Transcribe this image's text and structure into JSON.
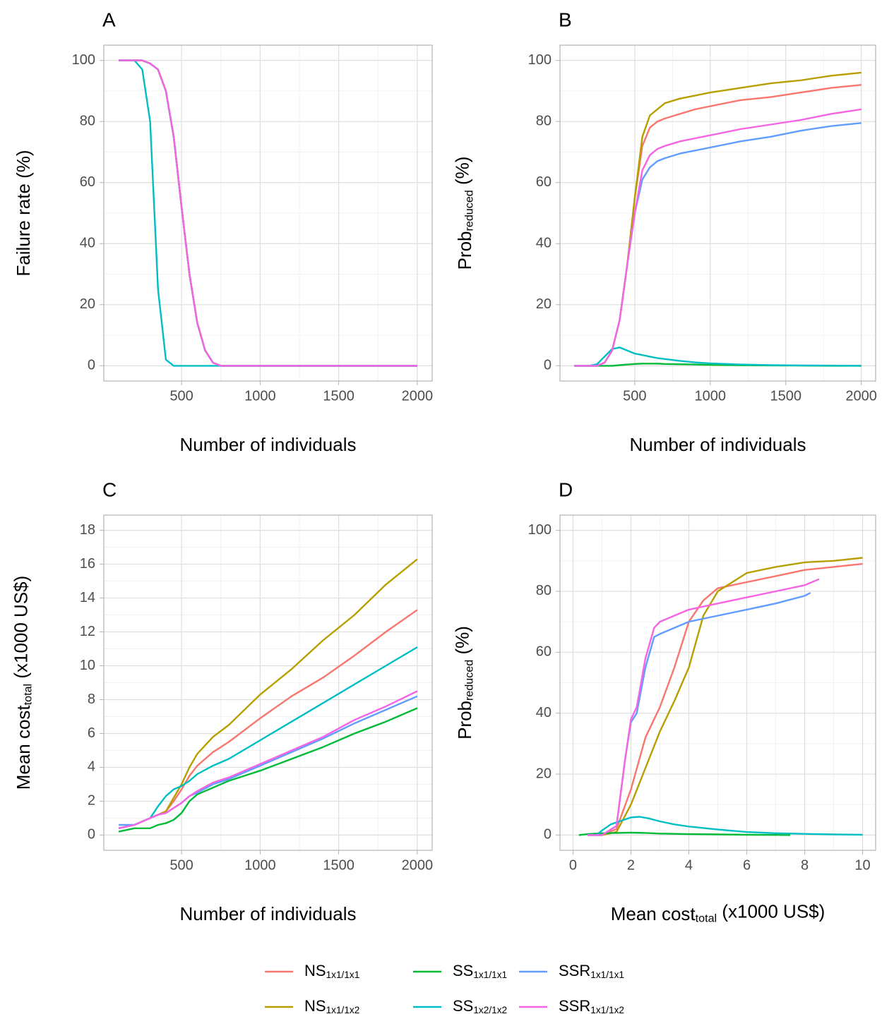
{
  "chart_data": [
    {
      "type": "line",
      "panel": "A",
      "y_label": "Failure rate (%)",
      "x_label": "Number of individuals",
      "x": [
        100,
        200,
        250,
        300,
        350,
        400,
        450,
        500,
        550,
        600,
        650,
        700,
        750,
        800,
        1000,
        1500,
        2000
      ],
      "xlim": [
        5,
        2095
      ],
      "xticks": [
        500,
        1000,
        1500,
        2000
      ],
      "ylim": [
        -5,
        105
      ],
      "yticks": [
        0,
        20,
        40,
        60,
        80,
        100
      ],
      "grid": true,
      "minor_grid": true,
      "series": [
        {
          "name": [
            {
              "text": "NS"
            },
            {
              "text": "1x1/1x1",
              "sub": true
            }
          ],
          "color": "#F8766D",
          "values": [
            100,
            100,
            100,
            99,
            97,
            90,
            75,
            52,
            30,
            14,
            5,
            1,
            0,
            0,
            0,
            0,
            0
          ]
        },
        {
          "name": [
            {
              "text": "NS"
            },
            {
              "text": "1x1/1x2",
              "sub": true
            }
          ],
          "color": "#B79F00",
          "values": [
            100,
            100,
            100,
            99,
            97,
            90,
            75,
            52,
            30,
            14,
            5,
            1,
            0,
            0,
            0,
            0,
            0
          ]
        },
        {
          "name": [
            {
              "text": "SS"
            },
            {
              "text": "1x1/1x1",
              "sub": true
            }
          ],
          "color": "#00BA38",
          "values": [
            100,
            100,
            100,
            99,
            97,
            90,
            75,
            52,
            30,
            14,
            5,
            1,
            0,
            0,
            0,
            0,
            0
          ]
        },
        {
          "name": [
            {
              "text": "SS"
            },
            {
              "text": "1x2/1x2",
              "sub": true
            }
          ],
          "color": "#00BFC4",
          "values": [
            100,
            100,
            97,
            80,
            25,
            2,
            0,
            0,
            0,
            0,
            0,
            0,
            0,
            0,
            0,
            0,
            0
          ]
        },
        {
          "name": [
            {
              "text": "SSR"
            },
            {
              "text": "1x1/1x1",
              "sub": true
            }
          ],
          "color": "#619CFF",
          "values": [
            100,
            100,
            100,
            99,
            97,
            90,
            75,
            52,
            30,
            14,
            5,
            1,
            0,
            0,
            0,
            0,
            0
          ]
        },
        {
          "name": [
            {
              "text": "SSR"
            },
            {
              "text": "1x1/1x2",
              "sub": true
            }
          ],
          "color": "#F564E3",
          "values": [
            100,
            100,
            100,
            99,
            97,
            90,
            75,
            52,
            30,
            14,
            5,
            1,
            0,
            0,
            0,
            0,
            0
          ]
        }
      ]
    },
    {
      "type": "line",
      "panel": "B",
      "y_label": [
        {
          "text": "Prob"
        },
        {
          "text": "reduced",
          "sub": true
        },
        {
          "text": " (%)"
        }
      ],
      "x_label": "Number of individuals",
      "x": [
        100,
        200,
        250,
        300,
        350,
        400,
        450,
        500,
        550,
        600,
        650,
        700,
        800,
        900,
        1000,
        1200,
        1400,
        1600,
        1800,
        2000
      ],
      "xlim": [
        5,
        2095
      ],
      "xticks": [
        500,
        1000,
        1500,
        2000
      ],
      "ylim": [
        -5,
        105
      ],
      "yticks": [
        0,
        20,
        40,
        60,
        80,
        100
      ],
      "grid": true,
      "minor_grid": true,
      "series": [
        {
          "name": [
            {
              "text": "NS"
            },
            {
              "text": "1x1/1x1",
              "sub": true
            }
          ],
          "color": "#F8766D",
          "values": [
            0,
            0,
            0,
            1,
            5,
            15,
            33,
            55,
            72,
            78,
            80,
            81,
            82.5,
            84,
            85,
            87,
            88,
            89.5,
            91,
            92
          ]
        },
        {
          "name": [
            {
              "text": "NS"
            },
            {
              "text": "1x1/1x2",
              "sub": true
            }
          ],
          "color": "#B79F00",
          "values": [
            0,
            0,
            0,
            1,
            5,
            15,
            33,
            55,
            75,
            82,
            84,
            86,
            87.5,
            88.5,
            89.5,
            91,
            92.5,
            93.5,
            95,
            96
          ]
        },
        {
          "name": [
            {
              "text": "SS"
            },
            {
              "text": "1x1/1x1",
              "sub": true
            }
          ],
          "color": "#00BA38",
          "values": [
            0,
            0,
            0,
            0,
            0,
            0.2,
            0.4,
            0.6,
            0.7,
            0.7,
            0.7,
            0.6,
            0.5,
            0.4,
            0.3,
            0.2,
            0.1,
            0.05,
            0,
            0
          ]
        },
        {
          "name": [
            {
              "text": "SS"
            },
            {
              "text": "1x2/1x2",
              "sub": true
            }
          ],
          "color": "#00BFC4",
          "values": [
            0,
            0,
            0.5,
            3,
            5.5,
            6,
            5,
            4,
            3.5,
            3,
            2.5,
            2.2,
            1.6,
            1.1,
            0.8,
            0.4,
            0.2,
            0.1,
            0.05,
            0
          ]
        },
        {
          "name": [
            {
              "text": "SSR"
            },
            {
              "text": "1x1/1x1",
              "sub": true
            }
          ],
          "color": "#619CFF",
          "values": [
            0,
            0,
            0,
            1,
            5,
            15,
            33,
            50,
            61,
            65,
            67,
            68,
            69.5,
            70.5,
            71.5,
            73.5,
            75,
            77,
            78.5,
            79.5
          ]
        },
        {
          "name": [
            {
              "text": "SSR"
            },
            {
              "text": "1x1/1x2",
              "sub": true
            }
          ],
          "color": "#F564E3",
          "values": [
            0,
            0,
            0,
            1,
            5,
            15,
            33,
            50,
            64,
            69,
            71,
            72,
            73.5,
            74.5,
            75.5,
            77.5,
            79,
            80.5,
            82.5,
            84
          ]
        }
      ]
    },
    {
      "type": "line",
      "panel": "C",
      "y_label": [
        {
          "text": "Mean cost"
        },
        {
          "text": "total",
          "sub": true
        },
        {
          "text": " (x1000 US$)"
        }
      ],
      "x_label": "Number of individuals",
      "x": [
        100,
        200,
        300,
        350,
        400,
        450,
        500,
        550,
        600,
        700,
        800,
        1000,
        1200,
        1400,
        1600,
        1800,
        2000
      ],
      "xlim": [
        5,
        2095
      ],
      "xticks": [
        500,
        1000,
        1500,
        2000
      ],
      "ylim": [
        -0.9,
        18.9
      ],
      "yticks": [
        0,
        2,
        4,
        6,
        8,
        10,
        12,
        14,
        16,
        18
      ],
      "grid": true,
      "minor_grid": true,
      "series": [
        {
          "name": [
            {
              "text": "NS"
            },
            {
              "text": "1x1/1x1",
              "sub": true
            }
          ],
          "color": "#F8766D",
          "values": [
            0.4,
            0.6,
            1.0,
            1.2,
            1.4,
            2.0,
            2.7,
            3.5,
            4.1,
            4.9,
            5.5,
            6.9,
            8.2,
            9.3,
            10.6,
            12,
            13.3
          ]
        },
        {
          "name": [
            {
              "text": "NS"
            },
            {
              "text": "1x1/1x2",
              "sub": true
            }
          ],
          "color": "#B79F00",
          "values": [
            0.4,
            0.6,
            1.0,
            1.2,
            1.4,
            2.2,
            3.0,
            4.0,
            4.8,
            5.8,
            6.5,
            8.3,
            9.8,
            11.5,
            13,
            14.8,
            16.3
          ]
        },
        {
          "name": [
            {
              "text": "SS"
            },
            {
              "text": "1x1/1x1",
              "sub": true
            }
          ],
          "color": "#00BA38",
          "values": [
            0.2,
            0.4,
            0.4,
            0.6,
            0.7,
            0.9,
            1.3,
            2.0,
            2.4,
            2.8,
            3.2,
            3.8,
            4.5,
            5.2,
            6.0,
            6.7,
            7.5
          ]
        },
        {
          "name": [
            {
              "text": "SS"
            },
            {
              "text": "1x2/1x2",
              "sub": true
            }
          ],
          "color": "#00BFC4",
          "values": [
            0.4,
            0.6,
            1.0,
            1.7,
            2.3,
            2.7,
            2.9,
            3.2,
            3.6,
            4.1,
            4.5,
            5.6,
            6.7,
            7.8,
            8.9,
            10,
            11.1
          ]
        },
        {
          "name": [
            {
              "text": "SSR"
            },
            {
              "text": "1x1/1x1",
              "sub": true
            }
          ],
          "color": "#619CFF",
          "values": [
            0.6,
            0.6,
            1.0,
            1.2,
            1.3,
            1.6,
            1.9,
            2.3,
            2.5,
            3.0,
            3.3,
            4.1,
            4.9,
            5.7,
            6.6,
            7.4,
            8.2
          ]
        },
        {
          "name": [
            {
              "text": "SSR"
            },
            {
              "text": "1x1/1x2",
              "sub": true
            }
          ],
          "color": "#F564E3",
          "values": [
            0.4,
            0.6,
            1.0,
            1.2,
            1.3,
            1.6,
            1.9,
            2.3,
            2.6,
            3.1,
            3.4,
            4.2,
            5.0,
            5.8,
            6.8,
            7.6,
            8.5
          ]
        }
      ]
    },
    {
      "type": "line",
      "panel": "D",
      "y_label": [
        {
          "text": "Prob"
        },
        {
          "text": "reduced",
          "sub": true
        },
        {
          "text": " (%)"
        }
      ],
      "x_label": [
        {
          "text": "Mean cost"
        },
        {
          "text": "total",
          "sub": true
        },
        {
          "text": " (x1000 US$)"
        }
      ],
      "xlim": [
        -0.45,
        10.45
      ],
      "xticks": [
        0,
        2,
        4,
        6,
        8,
        10
      ],
      "ylim": [
        -5,
        105
      ],
      "yticks": [
        0,
        20,
        40,
        60,
        80,
        100
      ],
      "grid": true,
      "minor_grid": true,
      "series": [
        {
          "name": [
            {
              "text": "NS"
            },
            {
              "text": "1x1/1x1",
              "sub": true
            }
          ],
          "color": "#F8766D",
          "x": [
            0.5,
            1,
            1.5,
            2,
            2.5,
            3,
            3.5,
            4,
            4.5,
            5,
            6,
            7,
            8,
            9,
            10
          ],
          "values": [
            0,
            0,
            2,
            15,
            32,
            42,
            55,
            70,
            77,
            81,
            83,
            85,
            87,
            88,
            89
          ]
        },
        {
          "name": [
            {
              "text": "NS"
            },
            {
              "text": "1x1/1x2",
              "sub": true
            }
          ],
          "color": "#B79F00",
          "x": [
            0.5,
            1,
            1.5,
            2,
            2.5,
            3,
            3.5,
            4,
            4.5,
            5,
            5.5,
            6,
            7,
            8,
            9,
            10
          ],
          "values": [
            0,
            0,
            1,
            10,
            22,
            34,
            44,
            55,
            72,
            80,
            83,
            86,
            88,
            89.5,
            90,
            91
          ]
        },
        {
          "name": [
            {
              "text": "SS"
            },
            {
              "text": "1x1/1x1",
              "sub": true
            }
          ],
          "color": "#00BA38",
          "x": [
            0.2,
            0.5,
            1,
            1.5,
            2,
            2.5,
            3,
            4,
            5,
            6,
            7,
            7.5
          ],
          "values": [
            0,
            0.3,
            0.6,
            0.7,
            0.8,
            0.7,
            0.5,
            0.3,
            0.2,
            0.1,
            0.05,
            0
          ]
        },
        {
          "name": [
            {
              "text": "SS"
            },
            {
              "text": "1x2/1x2",
              "sub": true
            }
          ],
          "color": "#00BFC4",
          "x": [
            0.5,
            0.8,
            1,
            1.3,
            1.6,
            2,
            2.3,
            2.6,
            3,
            3.5,
            4,
            5,
            6,
            7,
            8,
            9,
            10
          ],
          "values": [
            0,
            0,
            1.5,
            3.5,
            4.5,
            5.8,
            6,
            5.5,
            4.5,
            3.5,
            2.8,
            1.8,
            1.0,
            0.6,
            0.4,
            0.2,
            0.1
          ]
        },
        {
          "name": [
            {
              "text": "SSR"
            },
            {
              "text": "1x1/1x1",
              "sub": true
            }
          ],
          "color": "#619CFF",
          "x": [
            0.5,
            1,
            1.5,
            1.8,
            2,
            2.2,
            2.5,
            2.8,
            3,
            4,
            5,
            6,
            7,
            8,
            8.2
          ],
          "values": [
            0,
            0,
            3,
            25,
            37,
            40,
            55,
            65,
            66,
            70,
            72,
            74,
            76,
            78.5,
            79.5
          ]
        },
        {
          "name": [
            {
              "text": "SSR"
            },
            {
              "text": "1x1/1x2",
              "sub": true
            }
          ],
          "color": "#F564E3",
          "x": [
            0.5,
            1,
            1.5,
            1.8,
            2,
            2.2,
            2.5,
            2.8,
            3,
            4,
            5,
            6,
            7,
            8,
            8.5
          ],
          "values": [
            0,
            0,
            3,
            25,
            38,
            42,
            58,
            68,
            70,
            74,
            76,
            78,
            80,
            82,
            84
          ]
        }
      ]
    }
  ]
}
